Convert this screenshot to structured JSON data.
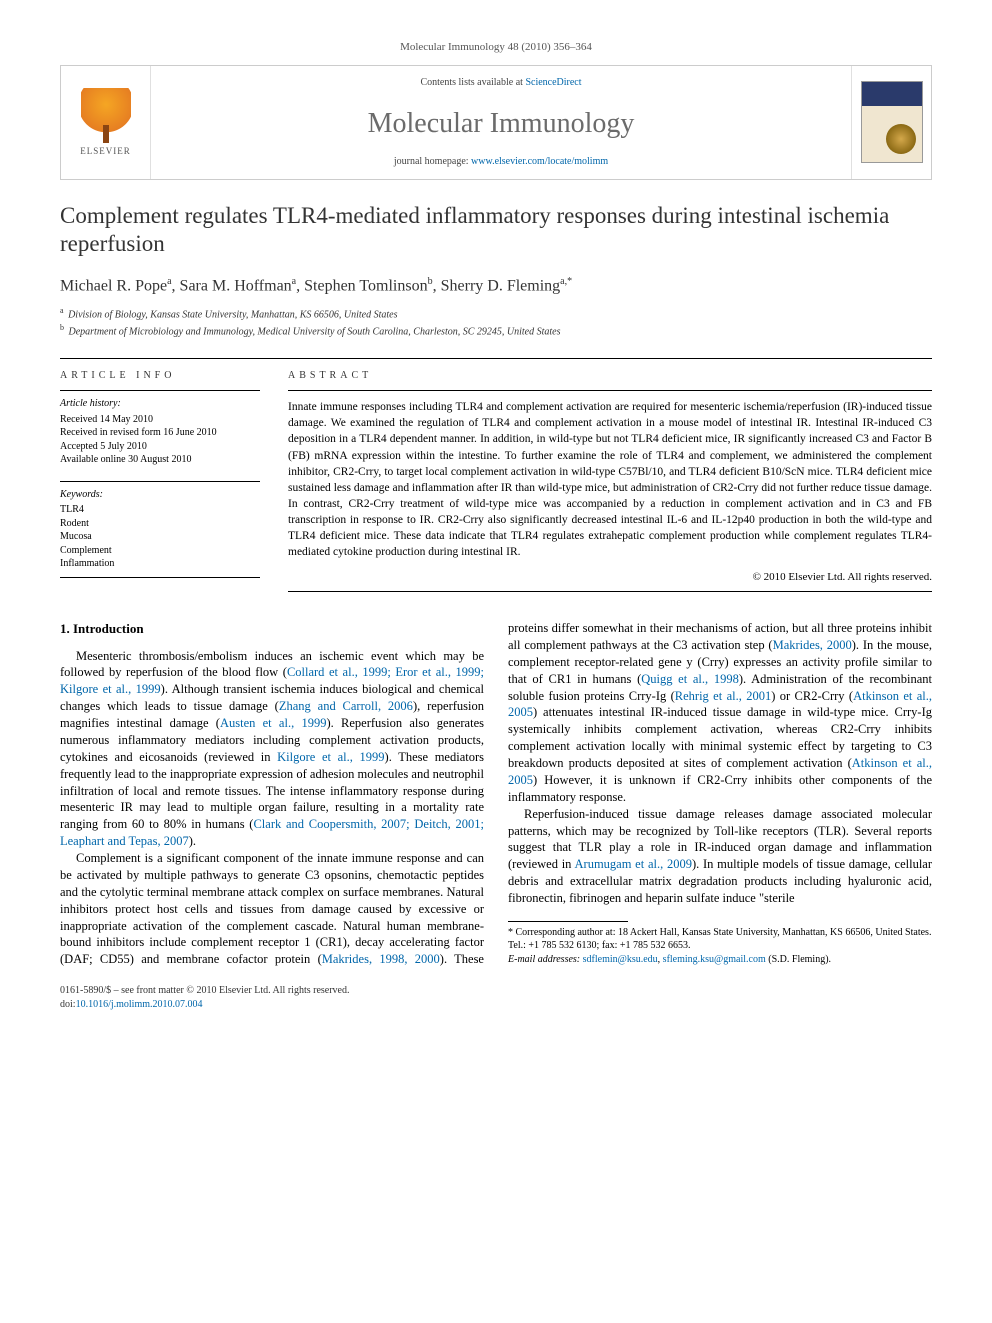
{
  "journal_ref": "Molecular Immunology 48 (2010) 356–364",
  "header": {
    "contents_prefix": "Contents lists available at ",
    "contents_link": "ScienceDirect",
    "journal_name": "Molecular Immunology",
    "homepage_prefix": "journal homepage: ",
    "homepage_url": "www.elsevier.com/locate/molimm",
    "elsevier_label": "ELSEVIER",
    "cover_title": "MOLECULAR IMMUNOLOGY"
  },
  "article": {
    "title": "Complement regulates TLR4-mediated inflammatory responses during intestinal ischemia reperfusion",
    "authors_html": "Michael R. Pope<sup>a</sup>, Sara M. Hoffman<sup>a</sup>, Stephen Tomlinson<sup>b</sup>, Sherry D. Fleming<sup>a,*</sup>",
    "affiliations": [
      {
        "sup": "a",
        "text": "Division of Biology, Kansas State University, Manhattan, KS 66506, United States"
      },
      {
        "sup": "b",
        "text": "Department of Microbiology and Immunology, Medical University of South Carolina, Charleston, SC 29245, United States"
      }
    ]
  },
  "info": {
    "heading": "ARTICLE INFO",
    "history_label": "Article history:",
    "history": [
      "Received 14 May 2010",
      "Received in revised form 16 June 2010",
      "Accepted 5 July 2010",
      "Available online 30 August 2010"
    ],
    "keywords_label": "Keywords:",
    "keywords": [
      "TLR4",
      "Rodent",
      "Mucosa",
      "Complement",
      "Inflammation"
    ]
  },
  "abstract": {
    "heading": "ABSTRACT",
    "text": "Innate immune responses including TLR4 and complement activation are required for mesenteric ischemia/reperfusion (IR)-induced tissue damage. We examined the regulation of TLR4 and complement activation in a mouse model of intestinal IR. Intestinal IR-induced C3 deposition in a TLR4 dependent manner. In addition, in wild-type but not TLR4 deficient mice, IR significantly increased C3 and Factor B (FB) mRNA expression within the intestine. To further examine the role of TLR4 and complement, we administered the complement inhibitor, CR2-Crry, to target local complement activation in wild-type C57Bl/10, and TLR4 deficient B10/ScN mice. TLR4 deficient mice sustained less damage and inflammation after IR than wild-type mice, but administration of CR2-Crry did not further reduce tissue damage. In contrast, CR2-Crry treatment of wild-type mice was accompanied by a reduction in complement activation and in C3 and FB transcription in response to IR. CR2-Crry also significantly decreased intestinal IL-6 and IL-12p40 production in both the wild-type and TLR4 deficient mice. These data indicate that TLR4 regulates extrahepatic complement production while complement regulates TLR4-mediated cytokine production during intestinal IR.",
    "copyright": "© 2010 Elsevier Ltd. All rights reserved."
  },
  "body": {
    "section1_heading": "1. Introduction",
    "para1_pre": "Mesenteric thrombosis/embolism induces an ischemic event which may be followed by reperfusion of the blood flow (",
    "para1_ref1": "Collard et al., 1999; Eror et al., 1999; Kilgore et al., 1999",
    "para1_mid1": "). Although transient ischemia induces biological and chemical changes which leads to tissue damage (",
    "para1_ref2": "Zhang and Carroll, 2006",
    "para1_mid2": "), reperfusion magnifies intestinal damage (",
    "para1_ref3": "Austen et al., 1999",
    "para1_mid3": "). Reperfusion also generates numerous inflammatory mediators including complement activation products, cytokines and eicosanoids (reviewed in ",
    "para1_ref4": "Kilgore et al., 1999",
    "para1_mid4": "). These mediators frequently lead to the inappropriate expression of adhesion molecules and neutrophil infiltration of local and remote tissues. The intense inflammatory response during mesenteric IR may lead to multiple organ failure, resulting in a mortality rate ranging from 60 to 80% in humans (",
    "para1_ref5": "Clark and Coopersmith, 2007; Deitch, 2001; Leaphart and Tepas, 2007",
    "para1_end": ").",
    "para2_pre": "Complement is a significant component of the innate immune response and can be activated by multiple pathways to generate C3 opsonins, chemotactic peptides and the cytolytic terminal membrane attack complex on surface membranes. Natural inhibitors protect host cells and tissues from damage caused by excessive or inappropriate activation of the complement cascade. Natural human membrane-bound inhibitors include complement receptor 1 (CR1), decay accelerating factor (DAF; CD55) and membrane cofactor protein (",
    "para2_ref1": "Makrides, 1998, 2000",
    "para2_mid1": "). These proteins differ somewhat in their mechanisms of action, but all three proteins inhibit all complement pathways at the C3 activation step (",
    "para2_ref2": "Makrides, 2000",
    "para2_mid2": "). In the mouse, complement receptor-related gene y (Crry) expresses an activity profile similar to that of CR1 in humans (",
    "para2_ref3": "Quigg et al., 1998",
    "para2_mid3": "). Administration of the recombinant soluble fusion proteins Crry-Ig (",
    "para2_ref4": "Rehrig et al., 2001",
    "para2_mid4": ") or CR2-Crry (",
    "para2_ref5": "Atkinson et al., 2005",
    "para2_mid5": ") attenuates intestinal IR-induced tissue damage in wild-type mice. Crry-Ig systemically inhibits complement activation, whereas CR2-Crry inhibits complement activation locally with minimal systemic effect by targeting to C3 breakdown products deposited at sites of complement activation (",
    "para2_ref6": "Atkinson et al., 2005",
    "para2_end": ") However, it is unknown if CR2-Crry inhibits other components of the inflammatory response.",
    "para3_pre": "Reperfusion-induced tissue damage releases damage associated molecular patterns, which may be recognized by Toll-like receptors (TLR). Several reports suggest that TLR play a role in IR-induced organ damage and inflammation (reviewed in ",
    "para3_ref1": "Arumugam et al., 2009",
    "para3_end": "). In multiple models of tissue damage, cellular debris and extracellular matrix degradation products including hyaluronic acid, fibronectin, fibrinogen and heparin sulfate induce \"sterile"
  },
  "footnotes": {
    "corr_label": "* Corresponding author at: 18 Ackert Hall, Kansas State University, Manhattan, KS 66506, United States. Tel.: +1 785 532 6130; fax: +1 785 532 6653.",
    "email_label": "E-mail addresses: ",
    "email1": "sdflemin@ksu.edu",
    "email_sep": ", ",
    "email2": "sfleming.ksu@gmail.com",
    "email_tail": " (S.D. Fleming)."
  },
  "bottom": {
    "line1": "0161-5890/$ – see front matter © 2010 Elsevier Ltd. All rights reserved.",
    "doi_prefix": "doi:",
    "doi": "10.1016/j.molimm.2010.07.004"
  },
  "colors": {
    "link": "#0066aa",
    "text": "#000000",
    "muted": "#555555",
    "journal_gray": "#6b6b6b",
    "border": "#cccccc"
  }
}
